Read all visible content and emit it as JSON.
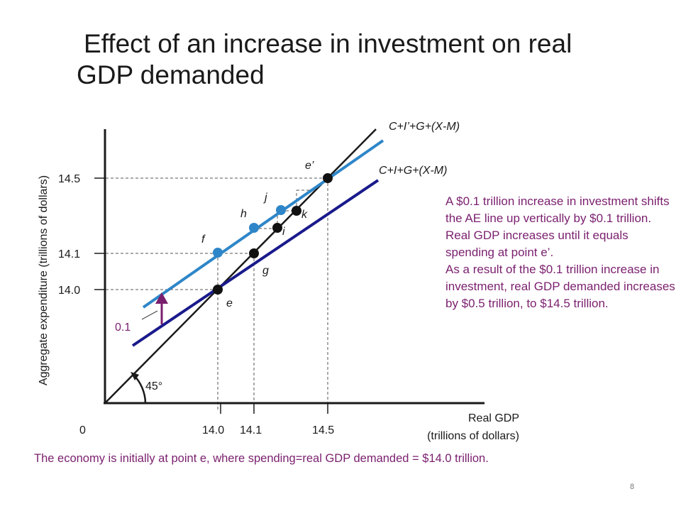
{
  "title": {
    "line1": "Effect of an increase in investment on real",
    "line2": "GDP demanded"
  },
  "axes": {
    "y_label": "Aggregate expenditure (trillions of dollars)",
    "x_label_line1": "Real GDP",
    "x_label_line2": "(trillions of dollars)",
    "origin": "0",
    "y_ticks": [
      "14.5",
      "14.1",
      "14.0"
    ],
    "x_ticks": [
      "14.0",
      "14.1",
      "14.5"
    ]
  },
  "lines": {
    "new_ae": "C+I’+G+(X-M)",
    "old_ae": "C+I+G+(X-M)",
    "angle": "45°",
    "shift_amount": "0.1"
  },
  "points": {
    "e": "e",
    "e_prime": "e’",
    "f": "f",
    "g": "g",
    "h": "h",
    "i": "i",
    "j": "j",
    "k": "k"
  },
  "note": [
    "A $0.1 trillion increase in investment shifts the AE line up vertically by $0.1 trillion.",
    "Real GDP increases until it equals spending at point e’.",
    "As a result of the $0.1 trillion increase in investment, real GDP demanded increases by $0.5 trillion, to $14.5 trillion."
  ],
  "footer": "The economy is initially at point e, where spending=real GDP demanded = $14.0 trillion.",
  "page_number": "8",
  "colors": {
    "new_line": "#2e86c8",
    "old_line": "#1a1a8c",
    "annotation": "#7a1f6e",
    "axis": "#1a1a1a"
  }
}
